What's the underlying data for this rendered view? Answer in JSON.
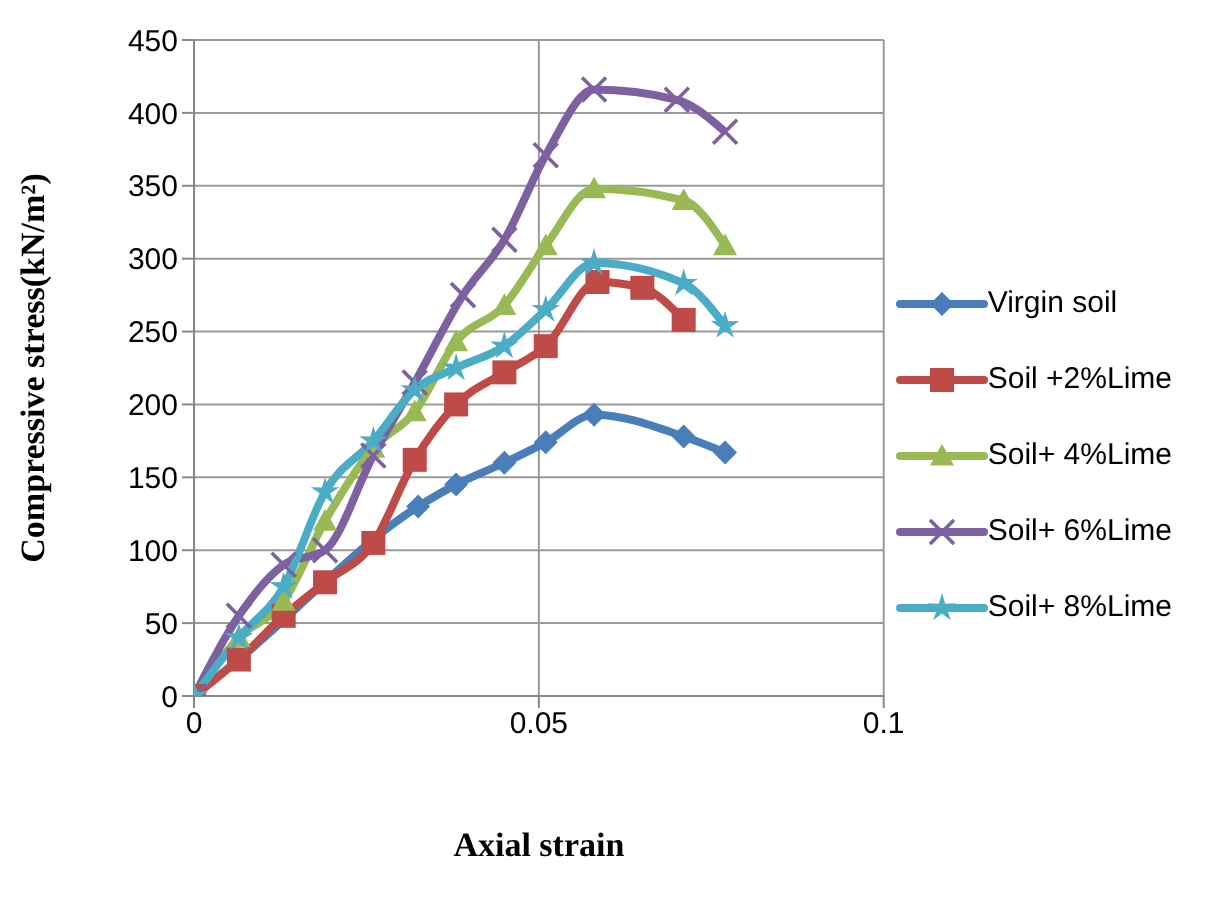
{
  "chart_data": {
    "type": "line",
    "xlabel": "Axial strain",
    "ylabel": "Compressive stress(kN/m²)",
    "xlim": [
      0,
      0.1
    ],
    "xticks": [
      0,
      0.05,
      0.1
    ],
    "ylim": [
      0,
      450
    ],
    "yticks": [
      0,
      50,
      100,
      150,
      200,
      250,
      300,
      350,
      400,
      450
    ],
    "grid": true,
    "legend": "right",
    "line_style": "solid",
    "series": [
      {
        "name": "Virgin soil",
        "color": "#4a7ebb",
        "marker": "diamond",
        "x": [
          0,
          0.0065,
          0.013,
          0.019,
          0.026,
          0.0325,
          0.038,
          0.045,
          0.051,
          0.058,
          0.071,
          0.077
        ],
        "values": [
          0,
          25,
          null,
          null,
          null,
          130,
          145,
          160,
          174,
          193,
          178,
          167
        ]
      },
      {
        "name": "Soil +2%Lime",
        "color": "#be4b48",
        "marker": "square",
        "x": [
          0,
          0.0065,
          0.013,
          0.019,
          0.026,
          0.032,
          0.038,
          0.045,
          0.051,
          0.0585,
          0.065,
          0.071
        ],
        "values": [
          0,
          25,
          55,
          78,
          105,
          162,
          200,
          222,
          240,
          284,
          280,
          258
        ]
      },
      {
        "name": "Soil+ 4%Lime",
        "color": "#98b954",
        "marker": "triangle",
        "x": [
          0,
          0.0065,
          0.013,
          0.019,
          0.026,
          0.032,
          0.038,
          0.045,
          0.051,
          0.058,
          0.071,
          0.077
        ],
        "values": [
          0,
          40,
          65,
          120,
          170,
          195,
          243,
          268,
          309,
          348,
          340,
          309
        ]
      },
      {
        "name": "Soil+ 6%Lime",
        "color": "#7d60a0",
        "marker": "cross",
        "x": [
          0,
          0.0065,
          0.013,
          0.019,
          0.026,
          0.032,
          0.039,
          0.045,
          0.051,
          0.058,
          0.07,
          0.077
        ],
        "values": [
          0,
          55,
          90,
          100,
          165,
          215,
          275,
          313,
          371,
          416,
          409,
          387
        ]
      },
      {
        "name": "Soil+ 8%Lime",
        "color": "#4bacc6",
        "marker": "star",
        "x": [
          0,
          0.0065,
          0.013,
          0.019,
          0.026,
          0.032,
          0.038,
          0.045,
          0.051,
          0.058,
          0.071,
          0.077
        ],
        "values": [
          0,
          40,
          75,
          140,
          175,
          210,
          225,
          240,
          265,
          297,
          283,
          254
        ]
      }
    ]
  }
}
